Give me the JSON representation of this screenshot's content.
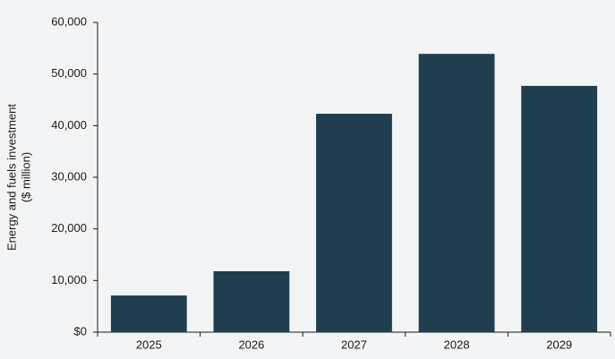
{
  "chart_data": {
    "type": "bar",
    "ylabel": [
      "Energy and fuels investment",
      "($ million)"
    ],
    "categories": [
      "2025",
      "2026",
      "2027",
      "2028",
      "2029"
    ],
    "values": [
      7100,
      11800,
      42300,
      53900,
      47700
    ],
    "color": "#1f3f4f",
    "ylim": [
      0,
      60000
    ],
    "yticks": [
      {
        "value": 0,
        "label": "$0"
      },
      {
        "value": 10000,
        "label": "10,000"
      },
      {
        "value": 20000,
        "label": "20,000"
      },
      {
        "value": 30000,
        "label": "30,000"
      },
      {
        "value": 40000,
        "label": "40,000"
      },
      {
        "value": 50000,
        "label": "50,000"
      },
      {
        "value": 60000,
        "label": "60,000"
      }
    ],
    "grid": false
  }
}
